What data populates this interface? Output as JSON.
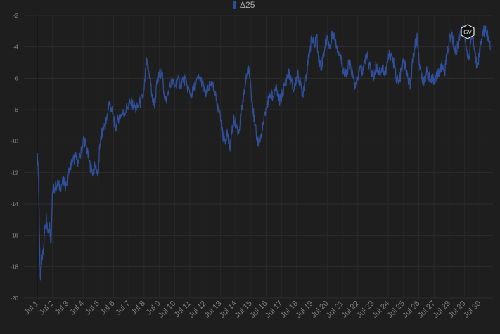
{
  "chart_data": {
    "type": "line",
    "series": [
      {
        "name": "Δ25",
        "color": "#2f4f9a"
      }
    ],
    "x": [
      "Jul 1",
      "Jul 2",
      "Jul 3",
      "Jul 4",
      "Jul 5",
      "Jul 6",
      "Jul 7",
      "Jul 8",
      "Jul 9",
      "Jul 10",
      "Jul 11",
      "Jul 12",
      "Jul 13",
      "Jul 14",
      "Jul 15",
      "Jul 16",
      "Jul 17",
      "Jul 18",
      "Jul 19",
      "Jul 20",
      "Jul 21",
      "Jul 22",
      "Jul 23",
      "Jul 24",
      "Jul 25",
      "Jul 26",
      "Jul 27",
      "Jul 28",
      "Jul 29",
      "Jul 30"
    ],
    "ylim": [
      -20,
      -2
    ],
    "yticks": [
      -2,
      -4,
      -6,
      -8,
      -10,
      -12,
      -14,
      -16,
      -18,
      -20
    ],
    "points": [
      [
        0.0,
        -11.0
      ],
      [
        0.05,
        -11.5
      ],
      [
        0.1,
        -13.5
      ],
      [
        0.15,
        -16.5
      ],
      [
        0.2,
        -18.6
      ],
      [
        0.25,
        -18.2
      ],
      [
        0.32,
        -17.5
      ],
      [
        0.4,
        -16.8
      ],
      [
        0.5,
        -15.5
      ],
      [
        0.6,
        -14.8
      ],
      [
        0.7,
        -15.8
      ],
      [
        0.8,
        -15.2
      ],
      [
        0.9,
        -16.5
      ],
      [
        1.0,
        -13.2
      ],
      [
        1.1,
        -13.0
      ],
      [
        1.3,
        -12.8
      ],
      [
        1.5,
        -12.9
      ],
      [
        1.7,
        -12.6
      ],
      [
        1.9,
        -12.8
      ],
      [
        2.1,
        -11.8
      ],
      [
        2.3,
        -11.3
      ],
      [
        2.5,
        -11.0
      ],
      [
        2.7,
        -11.4
      ],
      [
        2.9,
        -10.6
      ],
      [
        3.05,
        -9.8
      ],
      [
        3.2,
        -10.3
      ],
      [
        3.4,
        -11.3
      ],
      [
        3.6,
        -12.0
      ],
      [
        3.8,
        -11.6
      ],
      [
        4.0,
        -12.1
      ],
      [
        4.1,
        -10.2
      ],
      [
        4.25,
        -9.5
      ],
      [
        4.4,
        -9.0
      ],
      [
        4.55,
        -8.7
      ],
      [
        4.7,
        -7.5
      ],
      [
        4.85,
        -7.9
      ],
      [
        5.0,
        -8.6
      ],
      [
        5.15,
        -9.2
      ],
      [
        5.3,
        -8.5
      ],
      [
        5.5,
        -8.3
      ],
      [
        5.7,
        -8.2
      ],
      [
        5.9,
        -7.8
      ],
      [
        6.1,
        -7.6
      ],
      [
        6.3,
        -7.7
      ],
      [
        6.5,
        -8.0
      ],
      [
        6.7,
        -7.6
      ],
      [
        6.9,
        -7.3
      ],
      [
        7.0,
        -6.8
      ],
      [
        7.15,
        -5.0
      ],
      [
        7.25,
        -5.3
      ],
      [
        7.4,
        -6.0
      ],
      [
        7.55,
        -7.5
      ],
      [
        7.7,
        -7.6
      ],
      [
        7.85,
        -6.3
      ],
      [
        8.0,
        -5.8
      ],
      [
        8.15,
        -5.5
      ],
      [
        8.3,
        -6.9
      ],
      [
        8.45,
        -7.5
      ],
      [
        8.6,
        -6.8
      ],
      [
        8.8,
        -6.2
      ],
      [
        9.0,
        -6.5
      ],
      [
        9.2,
        -6.1
      ],
      [
        9.4,
        -6.4
      ],
      [
        9.6,
        -6.0
      ],
      [
        9.8,
        -6.4
      ],
      [
        10.0,
        -7.0
      ],
      [
        10.2,
        -6.9
      ],
      [
        10.4,
        -6.3
      ],
      [
        10.6,
        -6.0
      ],
      [
        10.8,
        -6.2
      ],
      [
        11.0,
        -7.0
      ],
      [
        11.2,
        -6.8
      ],
      [
        11.4,
        -6.2
      ],
      [
        11.6,
        -6.9
      ],
      [
        11.8,
        -7.6
      ],
      [
        12.0,
        -8.4
      ],
      [
        12.15,
        -9.6
      ],
      [
        12.3,
        -9.9
      ],
      [
        12.45,
        -9.4
      ],
      [
        12.6,
        -10.5
      ],
      [
        12.75,
        -9.5
      ],
      [
        12.9,
        -8.6
      ],
      [
        13.05,
        -9.0
      ],
      [
        13.2,
        -9.5
      ],
      [
        13.35,
        -8.3
      ],
      [
        13.5,
        -7.5
      ],
      [
        13.65,
        -6.3
      ],
      [
        13.8,
        -5.3
      ],
      [
        13.95,
        -6.0
      ],
      [
        14.1,
        -7.6
      ],
      [
        14.25,
        -9.0
      ],
      [
        14.4,
        -9.9
      ],
      [
        14.55,
        -10.1
      ],
      [
        14.7,
        -9.6
      ],
      [
        14.85,
        -8.7
      ],
      [
        15.0,
        -7.9
      ],
      [
        15.15,
        -7.4
      ],
      [
        15.3,
        -7.0
      ],
      [
        15.45,
        -7.2
      ],
      [
        15.6,
        -6.6
      ],
      [
        15.75,
        -7.0
      ],
      [
        15.9,
        -7.5
      ],
      [
        16.05,
        -7.0
      ],
      [
        16.2,
        -6.5
      ],
      [
        16.35,
        -6.0
      ],
      [
        16.5,
        -5.7
      ],
      [
        16.65,
        -6.2
      ],
      [
        16.8,
        -6.8
      ],
      [
        16.95,
        -6.1
      ],
      [
        17.1,
        -5.8
      ],
      [
        17.25,
        -6.4
      ],
      [
        17.4,
        -7.0
      ],
      [
        17.55,
        -6.0
      ],
      [
        17.7,
        -5.4
      ],
      [
        17.85,
        -4.2
      ],
      [
        18.0,
        -3.4
      ],
      [
        18.15,
        -4.0
      ],
      [
        18.3,
        -3.2
      ],
      [
        18.45,
        -4.8
      ],
      [
        18.6,
        -5.3
      ],
      [
        18.75,
        -4.6
      ],
      [
        18.9,
        -3.6
      ],
      [
        19.05,
        -3.5
      ],
      [
        19.2,
        -4.1
      ],
      [
        19.35,
        -3.0
      ],
      [
        19.5,
        -3.5
      ],
      [
        19.65,
        -4.0
      ],
      [
        19.8,
        -4.4
      ],
      [
        19.95,
        -5.0
      ],
      [
        20.1,
        -5.6
      ],
      [
        20.25,
        -5.9
      ],
      [
        20.4,
        -5.1
      ],
      [
        20.55,
        -5.3
      ],
      [
        20.7,
        -6.0
      ],
      [
        20.85,
        -6.6
      ],
      [
        21.0,
        -6.0
      ],
      [
        21.15,
        -5.3
      ],
      [
        21.3,
        -5.6
      ],
      [
        21.45,
        -4.9
      ],
      [
        21.6,
        -4.4
      ],
      [
        21.75,
        -5.1
      ],
      [
        21.9,
        -5.6
      ],
      [
        22.05,
        -5.9
      ],
      [
        22.2,
        -5.2
      ],
      [
        22.35,
        -5.5
      ],
      [
        22.5,
        -5.6
      ],
      [
        22.65,
        -5.3
      ],
      [
        22.8,
        -5.8
      ],
      [
        22.95,
        -5.0
      ],
      [
        23.1,
        -4.4
      ],
      [
        23.25,
        -4.6
      ],
      [
        23.4,
        -5.3
      ],
      [
        23.55,
        -6.0
      ],
      [
        23.7,
        -6.4
      ],
      [
        23.85,
        -5.5
      ],
      [
        24.0,
        -4.9
      ],
      [
        24.15,
        -5.4
      ],
      [
        24.3,
        -6.1
      ],
      [
        24.45,
        -6.5
      ],
      [
        24.6,
        -5.0
      ],
      [
        24.75,
        -3.9
      ],
      [
        24.9,
        -3.4
      ],
      [
        25.05,
        -5.1
      ],
      [
        25.2,
        -6.0
      ],
      [
        25.35,
        -6.2
      ],
      [
        25.5,
        -5.6
      ],
      [
        25.65,
        -5.8
      ],
      [
        25.8,
        -6.2
      ],
      [
        25.95,
        -6.1
      ],
      [
        26.1,
        -6.0
      ],
      [
        26.25,
        -5.7
      ],
      [
        26.4,
        -5.5
      ],
      [
        26.55,
        -5.2
      ],
      [
        26.7,
        -5.6
      ],
      [
        26.85,
        -4.4
      ],
      [
        27.0,
        -3.6
      ],
      [
        27.15,
        -3.2
      ],
      [
        27.3,
        -3.9
      ],
      [
        27.45,
        -4.4
      ],
      [
        27.6,
        -3.6
      ],
      [
        27.75,
        -3.0
      ],
      [
        27.9,
        -2.6
      ],
      [
        28.05,
        -3.7
      ],
      [
        28.2,
        -4.7
      ],
      [
        28.35,
        -4.3
      ],
      [
        28.5,
        -3.1
      ],
      [
        28.65,
        -4.2
      ],
      [
        28.8,
        -5.2
      ],
      [
        28.95,
        -4.6
      ],
      [
        29.1,
        -3.5
      ],
      [
        29.25,
        -2.9
      ],
      [
        29.4,
        -3.1
      ],
      [
        29.55,
        -3.3
      ],
      [
        29.7,
        -4.2
      ]
    ]
  },
  "logo_text": "GV"
}
